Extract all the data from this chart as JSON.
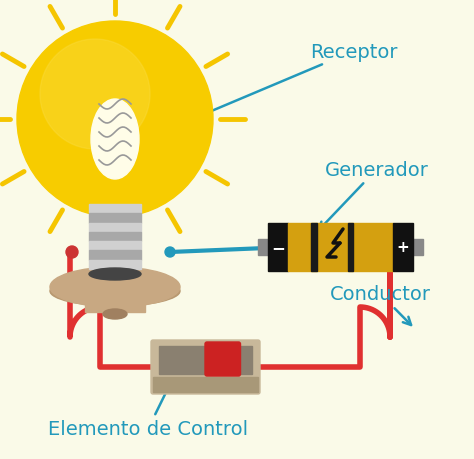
{
  "bg_color": "#FAFAE8",
  "label_color": "#2299BB",
  "wire_color": "#E03030",
  "blue_wire_color": "#2299BB",
  "labels": {
    "receptor": "Receptor",
    "generador": "Generador",
    "conductor": "Conductor",
    "elemento": "Elemento de Control"
  }
}
